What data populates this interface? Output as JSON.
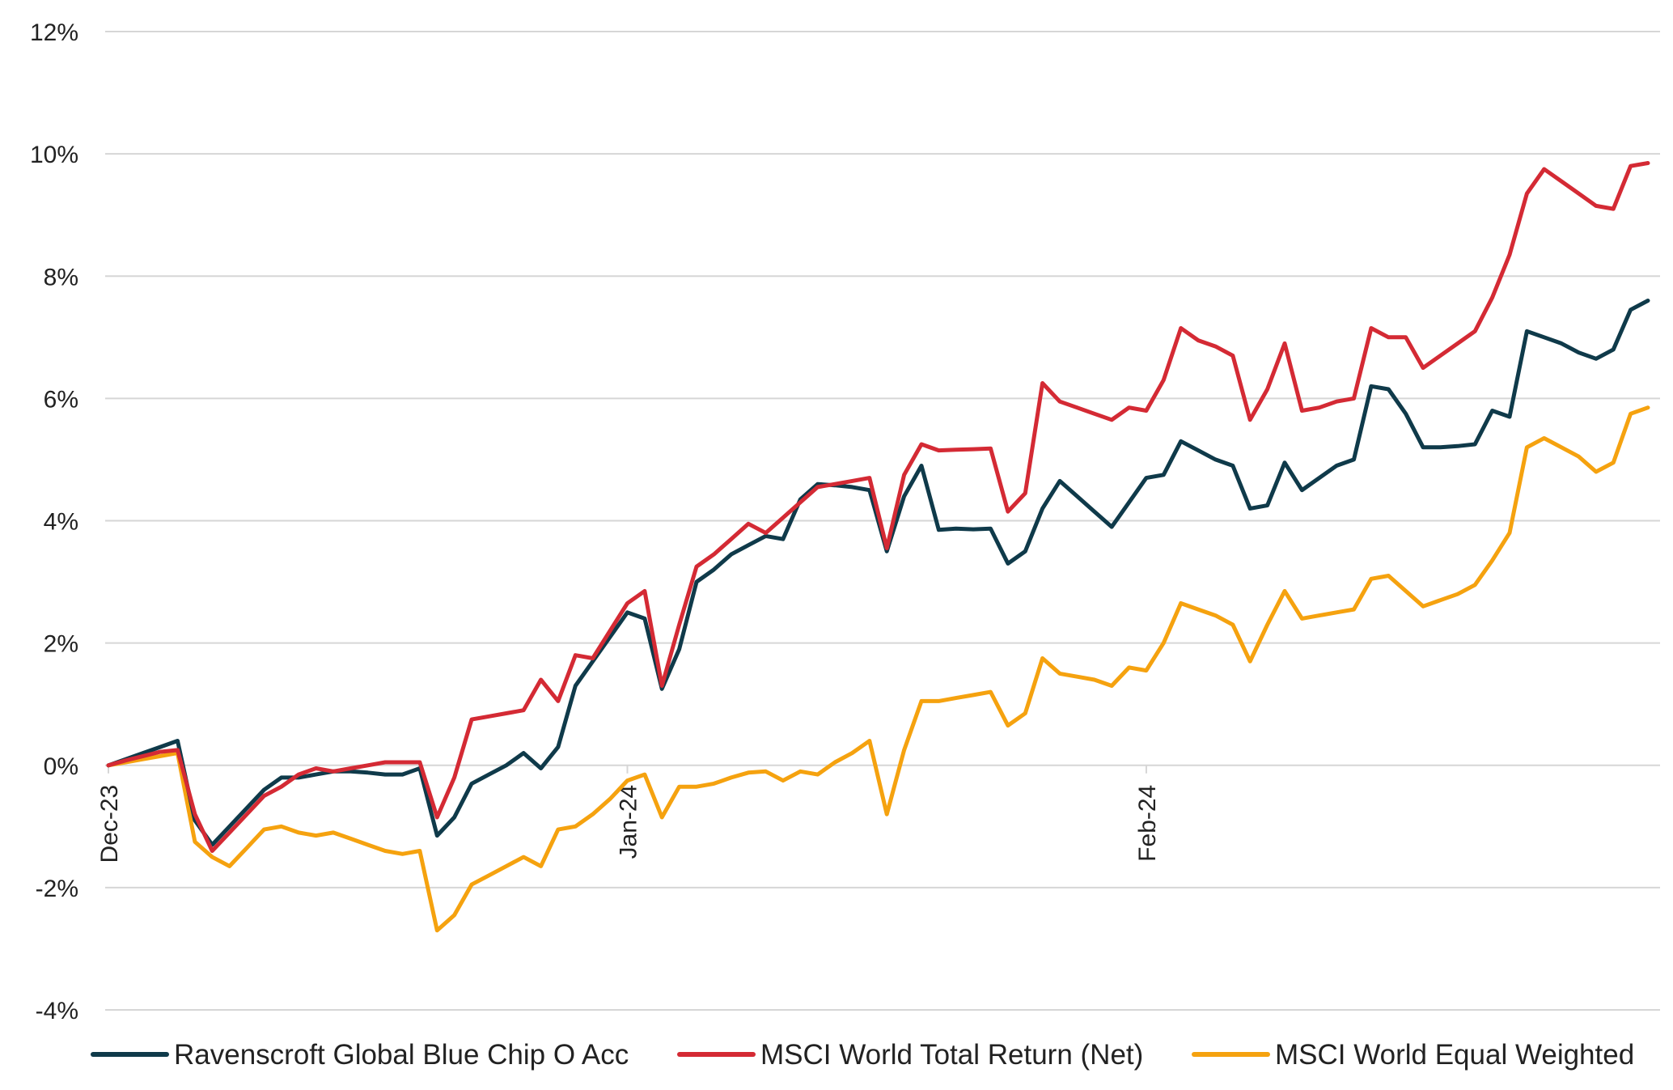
{
  "chart_data": {
    "type": "line",
    "title": "",
    "xlabel": "",
    "ylabel": "",
    "ylim": [
      -4,
      12
    ],
    "y_ticks": [
      12,
      10,
      8,
      6,
      4,
      2,
      0,
      -2,
      -4
    ],
    "y_tick_labels": [
      "12%",
      "10%",
      "8%",
      "6%",
      "4%",
      "2%",
      "0%",
      "-2%",
      "-4%"
    ],
    "x_tick_labels": [
      "Dec-23",
      "Jan-24",
      "Feb-24"
    ],
    "x_tick_positions": [
      0,
      30,
      60
    ],
    "x_range": [
      0,
      89.7
    ],
    "grid": "horizontal",
    "legend_position": "bottom",
    "x": [
      0,
      1,
      2,
      3,
      4,
      5,
      6,
      7,
      8,
      9,
      10,
      11,
      12,
      13,
      14,
      15,
      16,
      17,
      18,
      19,
      20,
      21,
      22,
      23,
      24,
      25,
      26,
      27,
      28,
      29,
      30,
      31,
      32,
      33,
      34,
      35,
      36,
      37,
      38,
      39,
      40,
      41,
      42,
      43,
      44,
      45,
      46,
      47,
      48,
      49,
      50,
      51,
      52,
      53,
      54,
      55,
      56,
      57,
      58,
      59,
      60,
      61,
      62,
      63,
      64,
      65,
      66,
      67,
      68,
      69,
      70,
      71,
      72,
      73,
      74,
      75,
      76,
      77,
      78,
      79,
      80,
      81,
      82,
      83,
      84,
      85,
      86,
      87,
      88,
      89
    ],
    "series": [
      {
        "name": "Ravenscroft Global Blue Chip O Acc",
        "color": "#0f3a4a",
        "values": [
          0.0,
          0.1,
          0.2,
          0.3,
          0.4,
          -0.9,
          -1.3,
          -1.0,
          -0.7,
          -0.4,
          -0.2,
          -0.2,
          -0.15,
          -0.1,
          -0.1,
          -0.12,
          -0.15,
          -0.15,
          -0.05,
          -1.15,
          -0.85,
          -0.3,
          -0.15,
          0.0,
          0.2,
          -0.05,
          0.3,
          1.3,
          1.7,
          2.1,
          2.5,
          2.4,
          1.25,
          1.9,
          3.0,
          3.2,
          3.45,
          3.6,
          3.75,
          3.7,
          4.35,
          4.6,
          4.58,
          4.55,
          4.5,
          3.5,
          4.4,
          4.9,
          3.85,
          3.87,
          3.86,
          3.87,
          3.3,
          3.5,
          4.2,
          4.65,
          4.4,
          4.15,
          3.9,
          4.3,
          4.7,
          4.75,
          5.3,
          5.15,
          5.0,
          4.9,
          4.2,
          4.25,
          4.95,
          4.5,
          4.7,
          4.9,
          5.0,
          6.2,
          6.15,
          5.75,
          5.2,
          5.2,
          5.22,
          5.25,
          5.8,
          5.7,
          7.1,
          7.0,
          6.9,
          6.75,
          6.65,
          6.8,
          7.45,
          7.6
        ]
      },
      {
        "name": "MSCI World Total Return (Net)",
        "color": "#d42a34",
        "values": [
          0.0,
          0.08,
          0.15,
          0.22,
          0.25,
          -0.8,
          -1.4,
          -1.1,
          -0.8,
          -0.5,
          -0.35,
          -0.15,
          -0.05,
          -0.1,
          -0.05,
          0.0,
          0.05,
          0.05,
          0.05,
          -0.85,
          -0.2,
          0.75,
          0.8,
          0.85,
          0.9,
          1.4,
          1.05,
          1.8,
          1.75,
          2.2,
          2.65,
          2.85,
          1.3,
          2.3,
          3.25,
          3.45,
          3.7,
          3.95,
          3.8,
          4.05,
          4.3,
          4.55,
          4.6,
          4.65,
          4.7,
          3.55,
          4.75,
          5.25,
          5.15,
          5.16,
          5.17,
          5.18,
          4.15,
          4.45,
          6.25,
          5.95,
          5.85,
          5.75,
          5.65,
          5.85,
          5.8,
          6.3,
          7.15,
          6.95,
          6.85,
          6.7,
          5.65,
          6.15,
          6.9,
          5.8,
          5.85,
          5.95,
          6.0,
          7.15,
          7.0,
          7.0,
          6.5,
          6.7,
          6.9,
          7.1,
          7.65,
          8.35,
          9.35,
          9.75,
          9.55,
          9.35,
          9.15,
          9.1,
          9.8,
          9.85
        ]
      },
      {
        "name": "MSCI World Equal Weighted",
        "color": "#f5a20f",
        "values": [
          0.0,
          0.05,
          0.1,
          0.15,
          0.2,
          -1.25,
          -1.5,
          -1.65,
          -1.35,
          -1.05,
          -1.0,
          -1.1,
          -1.15,
          -1.1,
          -1.2,
          -1.3,
          -1.4,
          -1.45,
          -1.4,
          -2.7,
          -2.45,
          -1.95,
          -1.8,
          -1.65,
          -1.5,
          -1.65,
          -1.05,
          -1.0,
          -0.8,
          -0.55,
          -0.25,
          -0.15,
          -0.85,
          -0.35,
          -0.35,
          -0.3,
          -0.2,
          -0.12,
          -0.1,
          -0.25,
          -0.1,
          -0.15,
          0.05,
          0.2,
          0.4,
          -0.8,
          0.25,
          1.05,
          1.05,
          1.1,
          1.15,
          1.2,
          0.65,
          0.85,
          1.75,
          1.5,
          1.45,
          1.4,
          1.3,
          1.6,
          1.55,
          2.0,
          2.65,
          2.55,
          2.45,
          2.3,
          1.7,
          2.3,
          2.85,
          2.4,
          2.45,
          2.5,
          2.55,
          3.05,
          3.1,
          2.85,
          2.6,
          2.7,
          2.8,
          2.95,
          3.35,
          3.8,
          5.2,
          5.35,
          5.2,
          5.05,
          4.8,
          4.95,
          5.75,
          5.85
        ]
      }
    ]
  }
}
